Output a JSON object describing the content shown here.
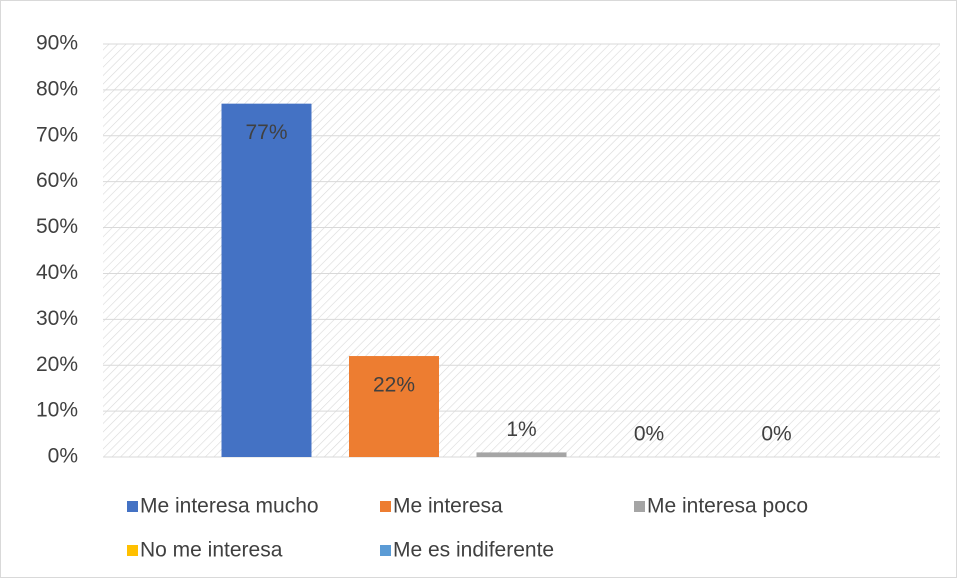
{
  "chart_data": {
    "type": "bar",
    "categories": [
      null
    ],
    "series": [
      {
        "name": "Me interesa mucho",
        "color": "#4472c4",
        "values": [
          77
        ],
        "value_labels": [
          "77%"
        ]
      },
      {
        "name": "Me interesa",
        "color": "#ed7d31",
        "values": [
          22
        ],
        "value_labels": [
          "22%"
        ]
      },
      {
        "name": "Me interesa poco",
        "color": "#a5a5a5",
        "values": [
          1
        ],
        "value_labels": [
          "1%"
        ]
      },
      {
        "name": "No me interesa",
        "color": "#ffc000",
        "values": [
          0
        ],
        "value_labels": [
          "0%"
        ]
      },
      {
        "name": "Me es indiferente",
        "color": "#5b9bd5",
        "values": [
          0
        ],
        "value_labels": [
          "0%"
        ]
      }
    ],
    "ylim": [
      0,
      90
    ],
    "yticks": [
      {
        "value": 0,
        "label": "0%"
      },
      {
        "value": 10,
        "label": "10%"
      },
      {
        "value": 20,
        "label": "20%"
      },
      {
        "value": 30,
        "label": "30%"
      },
      {
        "value": 40,
        "label": "40%"
      },
      {
        "value": 50,
        "label": "50%"
      },
      {
        "value": 60,
        "label": "60%"
      },
      {
        "value": 70,
        "label": "70%"
      },
      {
        "value": 80,
        "label": "80%"
      },
      {
        "value": 90,
        "label": "90%"
      }
    ],
    "grid": true,
    "legend": "bottom"
  }
}
